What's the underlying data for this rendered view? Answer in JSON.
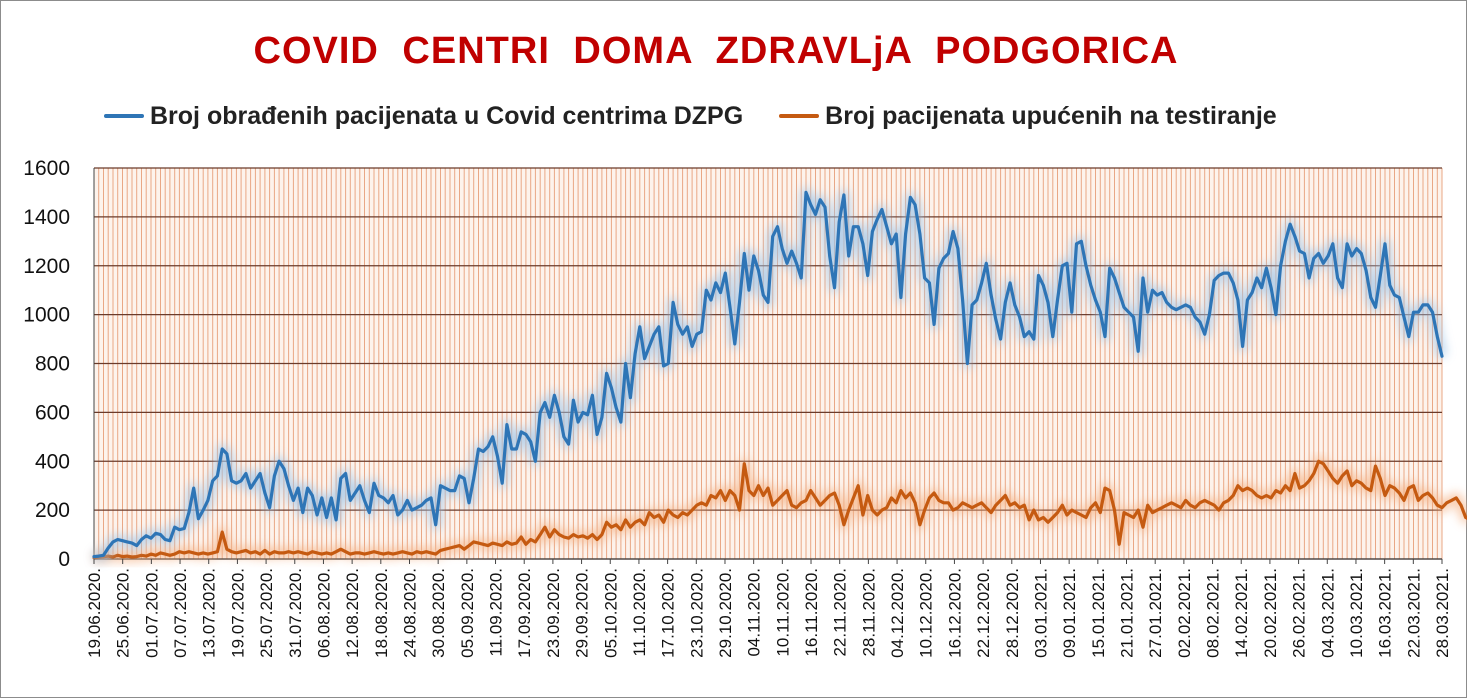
{
  "chart_data": {
    "type": "line",
    "title": "COVID  CENTRI  DOMA  ZDRAVLjA  PODGORICA",
    "xlabel": "",
    "ylabel": "",
    "ylim": [
      0,
      1600
    ],
    "yticks": [
      0,
      200,
      400,
      600,
      800,
      1000,
      1200,
      1400,
      1600
    ],
    "grid": "horizontal and vertical (daily)",
    "legend_position": "top",
    "x_start": "19.06.2020.",
    "x_end": "28.03.2021.",
    "x_tick_labels": [
      "19.06.2020.",
      "25.06.2020.",
      "01.07.2020.",
      "07.07.2020.",
      "13.07.2020.",
      "19.07.2020.",
      "25.07.2020.",
      "31.07.2020.",
      "06.08.2020.",
      "12.08.2020.",
      "18.08.2020.",
      "24.08.2020.",
      "30.08.2020.",
      "05.09.2020.",
      "11.09.2020.",
      "17.09.2020.",
      "23.09.2020.",
      "29.09.2020.",
      "05.10.2020.",
      "11.10.2020.",
      "17.10.2020.",
      "23.10.2020.",
      "29.10.2020.",
      "04.11.2020.",
      "10.11.2020.",
      "16.11.2020.",
      "22.11.2020.",
      "28.11.2020.",
      "04.12.2020.",
      "10.12.2020.",
      "16.12.2020.",
      "22.12.2020.",
      "28.12.2020.",
      "03.01.2021.",
      "09.01.2021.",
      "15.01.2021.",
      "21.01.2021.",
      "27.01.2021.",
      "02.02.2021.",
      "08.02.2021.",
      "14.02.2021.",
      "20.02.2021.",
      "26.02.2021.",
      "04.03.2021.",
      "10.03.2021.",
      "16.03.2021.",
      "22.03.2021.",
      "28.03.2021."
    ],
    "series": [
      {
        "name": "Broj obrađenih pacijenata u Covid centrima DZPG",
        "color": "#2e75b6",
        "values": [
          10,
          12,
          15,
          45,
          70,
          80,
          75,
          70,
          65,
          55,
          80,
          95,
          85,
          105,
          100,
          80,
          75,
          130,
          120,
          125,
          190,
          290,
          165,
          200,
          240,
          320,
          340,
          450,
          430,
          320,
          310,
          320,
          350,
          290,
          320,
          350,
          270,
          210,
          340,
          400,
          370,
          300,
          240,
          290,
          190,
          290,
          260,
          180,
          250,
          170,
          250,
          160,
          330,
          350,
          240,
          270,
          300,
          240,
          190,
          310,
          260,
          250,
          230,
          260,
          180,
          200,
          240,
          200,
          210,
          220,
          240,
          250,
          140,
          300,
          290,
          280,
          280,
          340,
          330,
          230,
          330,
          450,
          440,
          460,
          500,
          420,
          310,
          550,
          450,
          450,
          520,
          510,
          480,
          400,
          600,
          640,
          580,
          670,
          600,
          500,
          470,
          650,
          560,
          600,
          590,
          670,
          510,
          580,
          760,
          700,
          620,
          560,
          800,
          660,
          840,
          950,
          820,
          870,
          920,
          950,
          790,
          800,
          1050,
          960,
          920,
          950,
          870,
          920,
          930,
          1100,
          1060,
          1130,
          1090,
          1170,
          1030,
          880,
          1050,
          1250,
          1100,
          1240,
          1180,
          1080,
          1050,
          1320,
          1360,
          1270,
          1210,
          1260,
          1210,
          1150,
          1500,
          1450,
          1410,
          1470,
          1440,
          1240,
          1110,
          1380,
          1490,
          1240,
          1360,
          1360,
          1290,
          1160,
          1340,
          1390,
          1430,
          1360,
          1290,
          1330,
          1070,
          1330,
          1480,
          1450,
          1330,
          1150,
          1130,
          960,
          1190,
          1230,
          1250,
          1340,
          1270,
          1060,
          800,
          1040,
          1060,
          1130,
          1210,
          1080,
          980,
          900,
          1050,
          1130,
          1040,
          990,
          910,
          930,
          900,
          1160,
          1120,
          1050,
          910,
          1060,
          1200,
          1210,
          1010,
          1290,
          1300,
          1200,
          1120,
          1060,
          1010,
          910,
          1190,
          1150,
          1090,
          1030,
          1010,
          990,
          850,
          1150,
          1010,
          1100,
          1080,
          1090,
          1050,
          1030,
          1020,
          1030,
          1040,
          1030,
          990,
          970,
          920,
          1000,
          1140,
          1160,
          1170,
          1170,
          1130,
          1060,
          870,
          1060,
          1090,
          1150,
          1110,
          1190,
          1110,
          1000,
          1200,
          1300,
          1370,
          1320,
          1260,
          1250,
          1150,
          1230,
          1250,
          1210,
          1240,
          1290,
          1150,
          1110,
          1290,
          1240,
          1270,
          1250,
          1180,
          1070,
          1030,
          1160,
          1290,
          1120,
          1080,
          1070,
          990,
          910,
          1010,
          1010,
          1040,
          1040,
          1010,
          910,
          830
        ]
      },
      {
        "name": "Broj pacijenata upućenih na testiranje",
        "color": "#c55a11",
        "values": [
          5,
          8,
          10,
          12,
          8,
          15,
          10,
          12,
          8,
          10,
          15,
          12,
          20,
          15,
          25,
          20,
          15,
          20,
          30,
          25,
          30,
          25,
          20,
          25,
          20,
          25,
          30,
          110,
          40,
          30,
          25,
          30,
          35,
          25,
          30,
          20,
          35,
          20,
          30,
          25,
          25,
          30,
          25,
          30,
          25,
          20,
          30,
          25,
          20,
          25,
          20,
          30,
          40,
          30,
          20,
          25,
          25,
          20,
          25,
          30,
          25,
          20,
          25,
          20,
          25,
          30,
          25,
          20,
          30,
          25,
          30,
          25,
          20,
          35,
          40,
          45,
          50,
          55,
          40,
          55,
          70,
          65,
          60,
          55,
          65,
          60,
          55,
          70,
          60,
          65,
          90,
          60,
          80,
          70,
          100,
          130,
          90,
          120,
          100,
          90,
          85,
          100,
          90,
          95,
          85,
          100,
          80,
          100,
          150,
          130,
          140,
          120,
          160,
          130,
          150,
          160,
          140,
          190,
          170,
          180,
          150,
          200,
          180,
          170,
          190,
          180,
          200,
          220,
          230,
          220,
          260,
          250,
          280,
          240,
          280,
          260,
          200,
          390,
          280,
          260,
          300,
          260,
          290,
          220,
          240,
          260,
          280,
          220,
          210,
          230,
          240,
          280,
          250,
          220,
          240,
          260,
          270,
          220,
          140,
          200,
          250,
          300,
          180,
          260,
          200,
          180,
          200,
          210,
          250,
          230,
          280,
          250,
          270,
          230,
          140,
          200,
          250,
          270,
          240,
          230,
          230,
          200,
          210,
          230,
          220,
          210,
          220,
          230,
          210,
          190,
          220,
          240,
          260,
          220,
          230,
          210,
          220,
          160,
          200,
          160,
          170,
          150,
          170,
          190,
          220,
          180,
          200,
          190,
          180,
          170,
          210,
          230,
          190,
          290,
          280,
          200,
          60,
          190,
          180,
          170,
          200,
          130,
          220,
          190,
          200,
          210,
          220,
          230,
          220,
          210,
          240,
          220,
          210,
          230,
          240,
          230,
          220,
          200,
          230,
          240,
          260,
          300,
          280,
          290,
          280,
          260,
          250,
          260,
          250,
          280,
          270,
          300,
          280,
          350,
          290,
          300,
          320,
          350,
          400,
          390,
          360,
          330,
          310,
          340,
          360,
          300,
          320,
          310,
          290,
          280,
          380,
          330,
          260,
          300,
          290,
          270,
          240,
          290,
          300,
          240,
          260,
          270,
          250,
          220,
          210,
          230,
          240,
          250,
          220,
          170,
          160
        ]
      }
    ]
  }
}
